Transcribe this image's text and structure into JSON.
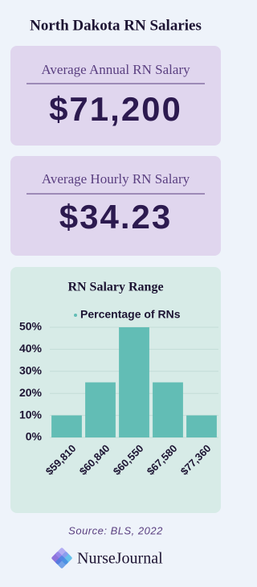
{
  "title": "North Dakota RN Salaries",
  "cards": [
    {
      "label": "Average Annual RN Salary",
      "value": "$71,200"
    },
    {
      "label": "Average Hourly RN Salary",
      "value": "$34.23"
    }
  ],
  "chart_data": {
    "type": "bar",
    "title": "RN Salary Range",
    "categories": [
      "$59,810",
      "$60,840",
      "$60,550",
      "$67,580",
      "$77,360"
    ],
    "series": [
      {
        "name": "Percentage of RNs",
        "color": "#62bdb5",
        "values": [
          10,
          25,
          50,
          25,
          10
        ]
      }
    ],
    "ylim": [
      0,
      50
    ],
    "yticks": [
      {
        "value": 0,
        "label": "0%"
      },
      {
        "value": 10,
        "label": "10%"
      },
      {
        "value": 20,
        "label": "20%"
      },
      {
        "value": 30,
        "label": "30%"
      },
      {
        "value": 40,
        "label": "40%"
      },
      {
        "value": 50,
        "label": "50%"
      }
    ],
    "grid": true
  },
  "source": "Source: BLS, 2022",
  "brand": "NurseJournal"
}
